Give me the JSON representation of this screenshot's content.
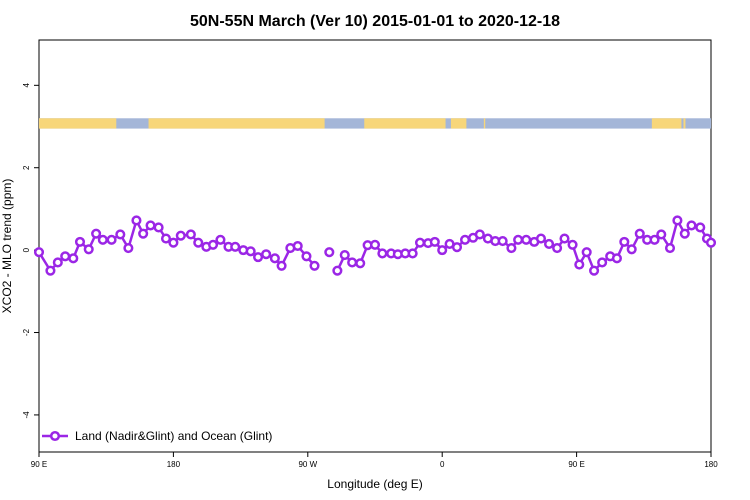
{
  "chart_data": {
    "type": "line",
    "title": "50N-55N March (Ver 10)   2015-01-01 to 2020-12-18",
    "xlabel": "Longitude (deg E)",
    "ylabel": "XCO2 - MLO trend (ppm)",
    "xlim": [
      0,
      100
    ],
    "ylim": [
      -4.9,
      5.1
    ],
    "xticks": [
      {
        "pos": 0,
        "label": "90 E"
      },
      {
        "pos": 20,
        "label": "180"
      },
      {
        "pos": 40,
        "label": "90 W"
      },
      {
        "pos": 60,
        "label": "0"
      },
      {
        "pos": 80,
        "label": "90 E"
      },
      {
        "pos": 100,
        "label": "180"
      }
    ],
    "yticks": [
      {
        "value": 4,
        "label": "4"
      },
      {
        "value": 2,
        "label": "2"
      },
      {
        "value": 0,
        "label": "0"
      },
      {
        "value": -2,
        "label": "-2"
      },
      {
        "value": -4,
        "label": "-4"
      }
    ],
    "grid": false,
    "legend_position": "bottom-left",
    "colors": {
      "series": "#9b26e6",
      "land": "#f7d67a",
      "ocean": "#a4b6d8"
    },
    "land_ocean_band": {
      "y_range": [
        2.95,
        3.2
      ],
      "land_segments": [
        [
          0,
          11.5
        ],
        [
          16.3,
          42.5
        ],
        [
          48.4,
          60.5
        ],
        [
          61.3,
          63.6
        ],
        [
          66.2,
          66.4
        ],
        [
          91.2,
          95.6
        ],
        [
          95.9,
          96.2
        ]
      ]
    },
    "series": [
      {
        "name": "Land (Nadir&Glint) and Ocean (Glint)",
        "x": [
          0,
          1.7,
          2.8,
          3.9,
          5.1,
          6.1,
          7.4,
          8.5,
          9.5,
          10.8,
          12.1,
          13.3,
          14.5,
          15.5,
          16.6,
          17.8,
          18.9,
          20.0,
          21.1,
          22.6,
          23.7,
          24.9,
          25.9,
          27.0,
          28.2,
          29.2,
          30.4,
          31.5,
          32.6,
          33.8,
          35.1,
          36.1,
          37.4,
          38.5,
          39.8,
          41.0
        ],
        "y": [
          -0.05,
          -0.5,
          -0.3,
          -0.15,
          -0.2,
          0.2,
          0.02,
          0.4,
          0.25,
          0.25,
          0.38,
          0.05,
          0.72,
          0.4,
          0.6,
          0.55,
          0.28,
          0.18,
          0.35,
          0.38,
          0.18,
          0.08,
          0.13,
          0.25,
          0.08,
          0.08,
          0.0,
          -0.03,
          -0.17,
          -0.1,
          -0.2,
          -0.38,
          0.05,
          0.1,
          -0.15,
          -0.38
        ]
      },
      {
        "name": "",
        "x": [
          43.2
        ],
        "y": [
          -0.05
        ]
      },
      {
        "name": "",
        "x": [
          44.4,
          45.5,
          46.6,
          47.8,
          48.9,
          50.0,
          51.1,
          52.4,
          53.4,
          54.5,
          55.6,
          56.7,
          57.9,
          58.9,
          60.0,
          61.1,
          62.2,
          63.4,
          64.6,
          65.6,
          66.8,
          67.9,
          69.0,
          70.3,
          71.3,
          72.5,
          73.7,
          74.7,
          75.9,
          77.1,
          78.2,
          79.4,
          80.4,
          81.5,
          82.6,
          83.8,
          85.0,
          86.0,
          87.1,
          88.2,
          89.4,
          90.5,
          91.6,
          92.6,
          93.9,
          95.0,
          96.1,
          97.1,
          98.4,
          99.4
        ],
        "y": [
          -0.5,
          -0.12,
          -0.3,
          -0.32,
          0.12,
          0.13,
          -0.08,
          -0.08,
          -0.1,
          -0.08,
          -0.08,
          0.18,
          0.17,
          0.2,
          0.0,
          0.15,
          0.07,
          0.25,
          0.3,
          0.38,
          0.28,
          0.22,
          0.22,
          0.05,
          0.25,
          0.25,
          0.2,
          0.28,
          0.15,
          0.05,
          0.28,
          0.13,
          -0.35,
          -0.05,
          -0.5,
          -0.3,
          -0.15,
          -0.2,
          0.2,
          0.02,
          0.4,
          0.25,
          0.25,
          0.38,
          0.05,
          0.72,
          0.4,
          0.6,
          0.55,
          0.28
        ]
      },
      {
        "name": "",
        "x": [
          100
        ],
        "y": [
          0.18
        ]
      }
    ]
  }
}
